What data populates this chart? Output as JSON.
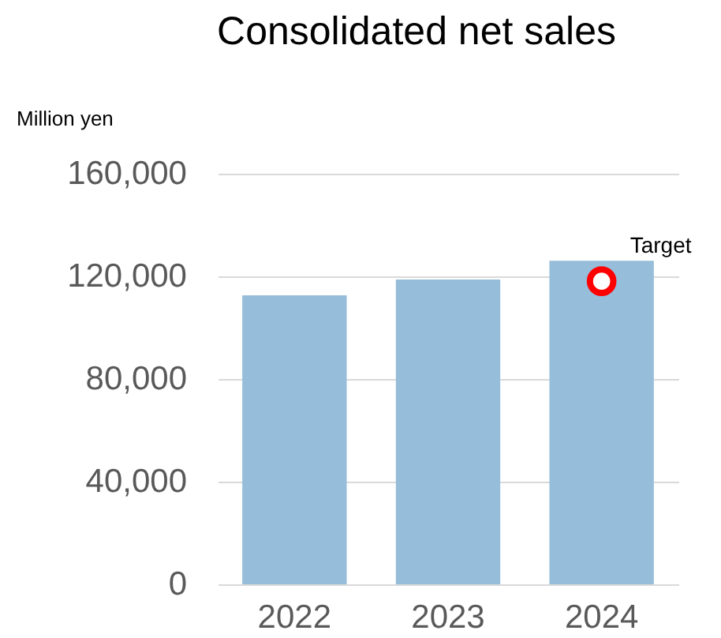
{
  "chart_data": {
    "type": "bar",
    "title": "Consolidated net sales",
    "ylabel": "Million yen",
    "categories": [
      "2022",
      "2023",
      "2024"
    ],
    "series": [
      {
        "color": "#96bdd9",
        "values": [
          112600,
          118800,
          126100
        ]
      },
      {
        "type": "scatter",
        "name": "Target",
        "color": "#ff0000",
        "values": [
          null,
          null,
          118100
        ],
        "marker": "circle"
      }
    ],
    "ylim": [
      0,
      160000
    ],
    "yticks": [
      0,
      {
        "value": 40000,
        "label": "40,000"
      },
      {
        "value": 80000,
        "label": "80,000"
      },
      {
        "value": 120000,
        "label": "120,000"
      },
      {
        "value": 160000,
        "label": "160,000"
      }
    ],
    "grid": "y"
  }
}
